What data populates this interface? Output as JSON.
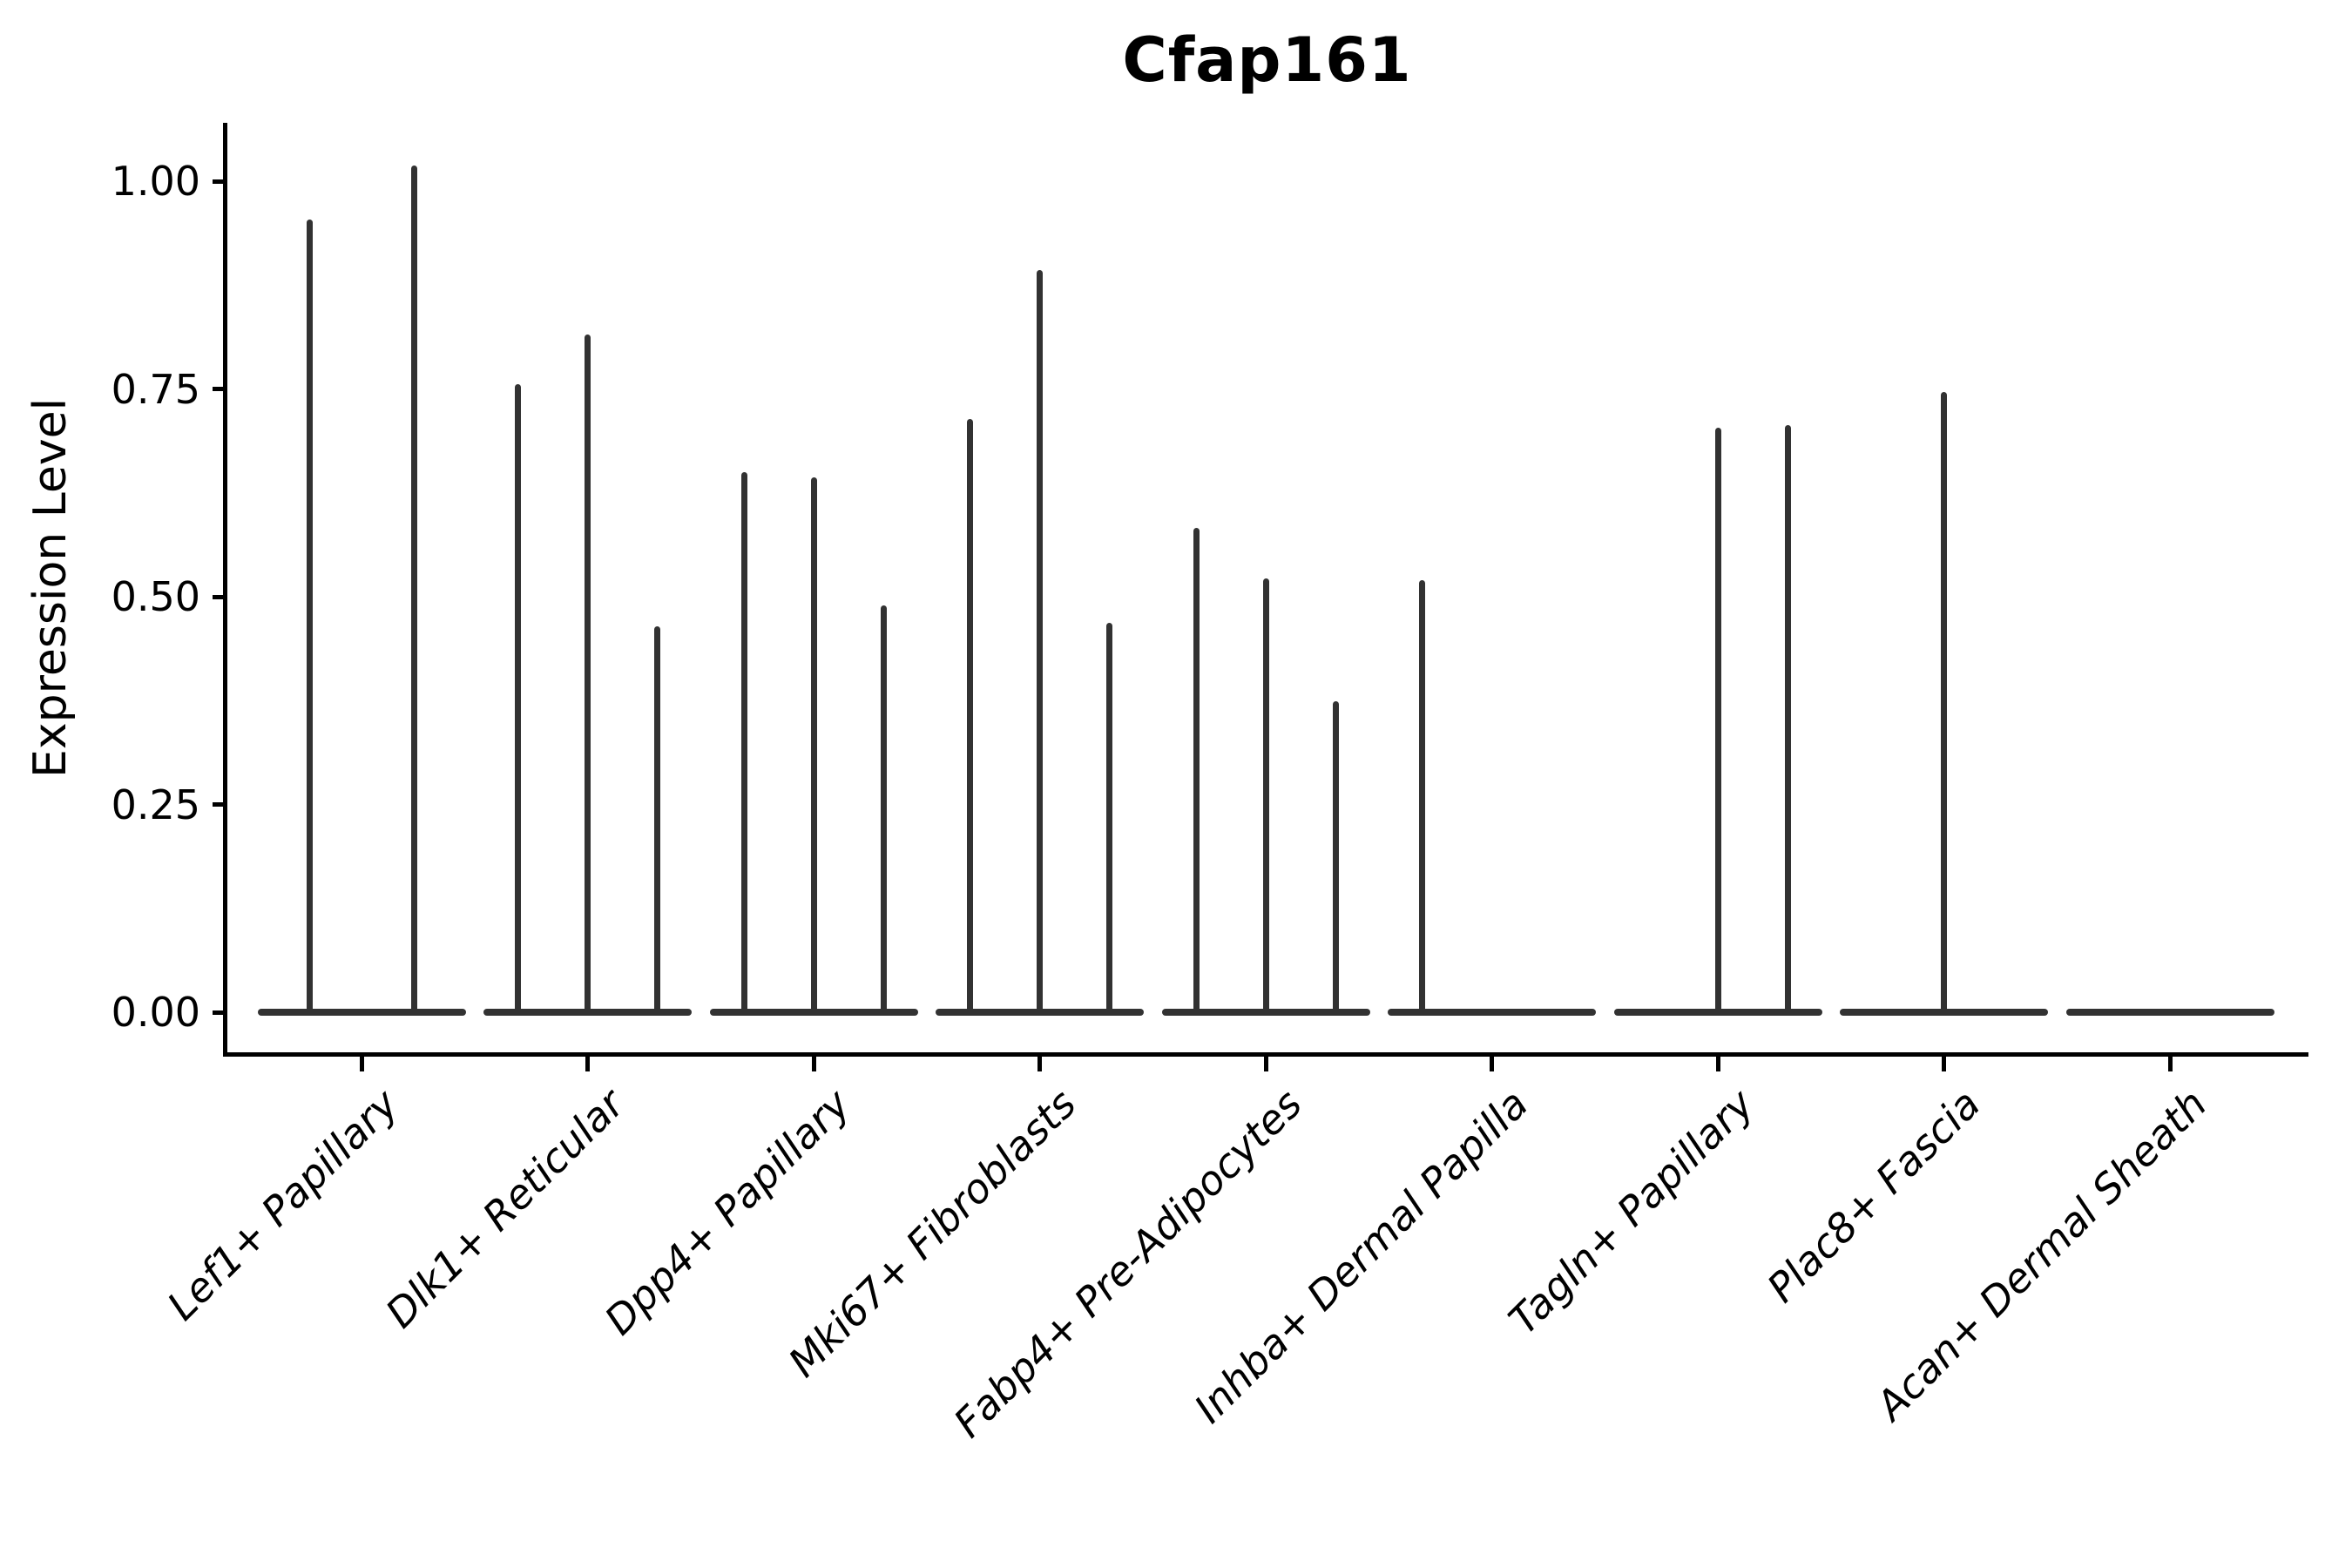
{
  "figure": {
    "title": "Cfap161",
    "ylabel": "Expression Level"
  },
  "chart_data": {
    "type": "violin",
    "title": "Cfap161",
    "xlabel": "",
    "ylabel": "Expression Level",
    "ylim": [
      0.0,
      1.07
    ],
    "yticks": [
      0.0,
      0.25,
      0.5,
      0.75,
      1.0
    ],
    "ytick_labels": [
      "0.00",
      "0.25",
      "0.50",
      "0.75",
      "1.00"
    ],
    "grid": false,
    "legend_position": "none",
    "violin_color": "#323232",
    "axis_color": "#000000",
    "note": "Sparse violin plot: each category shows flat near-zero density bodies with thin spikes reaching the listed maximum expression values; 0 means a flat violin with no spike.",
    "categories": [
      "Lef1+ Papillary",
      "Dlk1+ Reticular",
      "Dpp4+ Papillary",
      "Mki67+ Fibroblasts",
      "Fabp4+ Pre-Adipocytes",
      "Inhba+ Dermal Papilla",
      "Tagln+ Papillary",
      "Plac8+ Fascia",
      "Acan+ Dermal Sheath"
    ],
    "groups": [
      {
        "label": "Lef1+ Papillary",
        "violins": [
          0.954,
          1.019
        ]
      },
      {
        "label": "Dlk1+ Reticular",
        "violins": [
          0.756,
          0.815,
          0.464
        ]
      },
      {
        "label": "Dpp4+ Papillary",
        "violins": [
          0.65,
          0.644,
          0.49
        ]
      },
      {
        "label": "Mki67+ Fibroblasts",
        "violins": [
          0.714,
          0.893,
          0.469
        ]
      },
      {
        "label": "Fabp4+ Pre-Adipocytes",
        "violins": [
          0.583,
          0.522,
          0.374
        ]
      },
      {
        "label": "Inhba+ Dermal Papilla",
        "violins": [
          0.52,
          0,
          0
        ]
      },
      {
        "label": "Tagln+ Papillary",
        "violins": [
          0,
          0.703,
          0.706
        ]
      },
      {
        "label": "Plac8+ Fascia",
        "violins": [
          0.746
        ]
      },
      {
        "label": "Acan+ Dermal Sheath",
        "violins": [
          0
        ]
      }
    ]
  }
}
